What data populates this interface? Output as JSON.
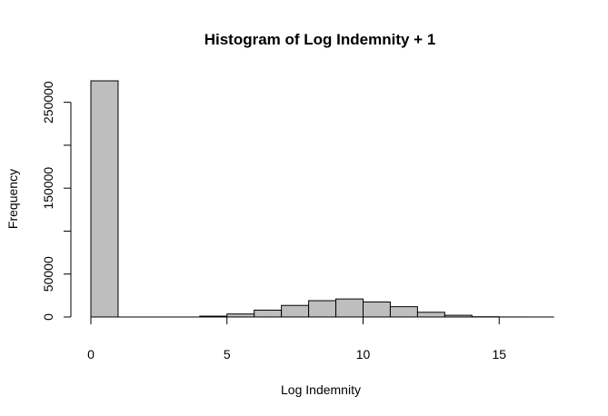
{
  "chart_data": {
    "type": "bar",
    "title": "Histogram of Log Indemnity + 1",
    "xlabel": "Log Indemnity",
    "ylabel": "Frequency",
    "bar_color": "#bebebe",
    "border_color": "#000000",
    "bins": [
      {
        "x0": 0,
        "x1": 1,
        "count": 275000
      },
      {
        "x0": 1,
        "x1": 2,
        "count": 0
      },
      {
        "x0": 2,
        "x1": 3,
        "count": 0
      },
      {
        "x0": 3,
        "x1": 4,
        "count": 0
      },
      {
        "x0": 4,
        "x1": 5,
        "count": 1000
      },
      {
        "x0": 5,
        "x1": 6,
        "count": 3500
      },
      {
        "x0": 6,
        "x1": 7,
        "count": 8000
      },
      {
        "x0": 7,
        "x1": 8,
        "count": 13500
      },
      {
        "x0": 8,
        "x1": 9,
        "count": 19000
      },
      {
        "x0": 9,
        "x1": 10,
        "count": 21000
      },
      {
        "x0": 10,
        "x1": 11,
        "count": 17500
      },
      {
        "x0": 11,
        "x1": 12,
        "count": 12000
      },
      {
        "x0": 12,
        "x1": 13,
        "count": 5500
      },
      {
        "x0": 13,
        "x1": 14,
        "count": 2000
      },
      {
        "x0": 14,
        "x1": 15,
        "count": 300
      },
      {
        "x0": 15,
        "x1": 16,
        "count": 50
      },
      {
        "x0": 16,
        "x1": 17,
        "count": 10
      }
    ],
    "xlim": [
      0,
      17
    ],
    "ylim": [
      0,
      275000
    ],
    "x_ticks": [
      0,
      5,
      10,
      15
    ],
    "x_tick_labels": [
      "0",
      "5",
      "10",
      "15"
    ],
    "y_ticks": [
      0,
      50000,
      100000,
      150000,
      200000,
      250000
    ],
    "y_tick_labels": [
      "0",
      "50000",
      "",
      "150000",
      "",
      "250000"
    ],
    "grid": false
  }
}
